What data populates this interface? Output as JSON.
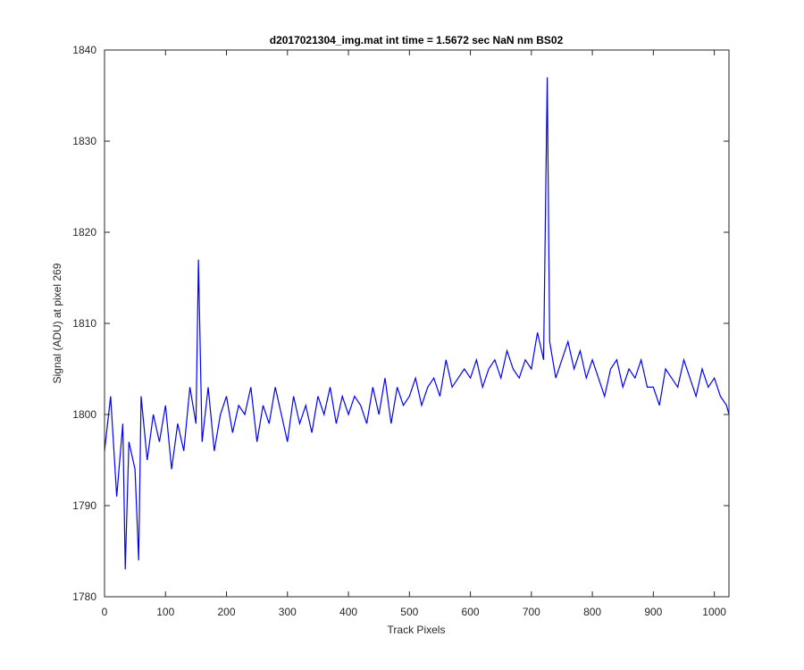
{
  "chart_data": {
    "type": "line",
    "title": "d2017021304_img.mat int time = 1.5672 sec  NaN nm BS02",
    "xlabel": "Track Pixels",
    "ylabel": "Signal (ADU) at pixel 269",
    "xlim": [
      0,
      1024
    ],
    "ylim": [
      1780,
      1840
    ],
    "xticks": [
      0,
      100,
      200,
      300,
      400,
      500,
      600,
      700,
      800,
      900,
      1000
    ],
    "yticks": [
      1780,
      1790,
      1800,
      1810,
      1820,
      1830,
      1840
    ],
    "grid": false,
    "legend": "none",
    "series": [
      {
        "color": "#0000ff",
        "x": [
          0,
          10,
          20,
          30,
          34,
          40,
          50,
          56,
          60,
          70,
          80,
          90,
          100,
          110,
          120,
          130,
          140,
          150,
          154,
          160,
          170,
          180,
          190,
          200,
          210,
          220,
          230,
          240,
          250,
          260,
          270,
          280,
          290,
          300,
          310,
          320,
          330,
          340,
          350,
          360,
          370,
          380,
          390,
          400,
          410,
          420,
          430,
          440,
          450,
          460,
          470,
          480,
          490,
          500,
          510,
          520,
          530,
          540,
          550,
          560,
          570,
          580,
          590,
          600,
          610,
          620,
          630,
          640,
          650,
          660,
          670,
          680,
          690,
          700,
          710,
          720,
          726,
          730,
          740,
          750,
          760,
          770,
          780,
          790,
          800,
          810,
          820,
          830,
          840,
          850,
          860,
          870,
          880,
          890,
          900,
          910,
          920,
          930,
          940,
          950,
          960,
          970,
          980,
          990,
          1000,
          1010,
          1020,
          1024
        ],
        "y": [
          1796,
          1802,
          1791,
          1799,
          1783,
          1797,
          1794,
          1784,
          1802,
          1795,
          1800,
          1797,
          1801,
          1794,
          1799,
          1796,
          1803,
          1799,
          1817,
          1797,
          1803,
          1796,
          1800,
          1802,
          1798,
          1801,
          1800,
          1803,
          1797,
          1801,
          1799,
          1803,
          1800,
          1797,
          1802,
          1799,
          1801,
          1798,
          1802,
          1800,
          1803,
          1799,
          1802,
          1800,
          1802,
          1801,
          1799,
          1803,
          1800,
          1804,
          1799,
          1803,
          1801,
          1802,
          1804,
          1801,
          1803,
          1804,
          1802,
          1806,
          1803,
          1804,
          1805,
          1804,
          1806,
          1803,
          1805,
          1806,
          1804,
          1807,
          1805,
          1804,
          1806,
          1805,
          1809,
          1806,
          1837,
          1808,
          1804,
          1806,
          1808,
          1805,
          1807,
          1804,
          1806,
          1804,
          1802,
          1805,
          1806,
          1803,
          1805,
          1804,
          1806,
          1803,
          1803,
          1801,
          1805,
          1804,
          1803,
          1806,
          1804,
          1802,
          1805,
          1803,
          1804,
          1802,
          1801,
          1800
        ]
      }
    ]
  }
}
